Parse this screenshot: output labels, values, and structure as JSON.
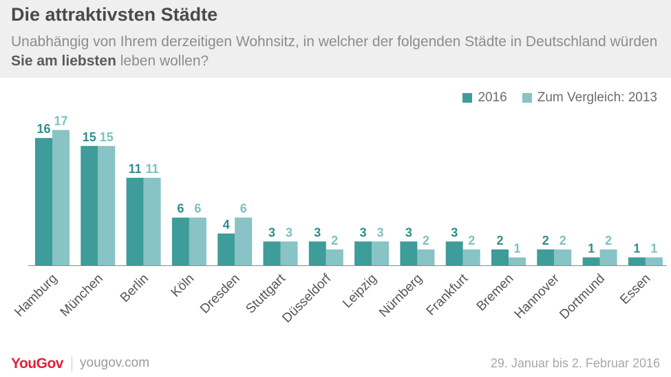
{
  "header": {
    "title": "Die attraktivsten Städte",
    "subtitle_pre": "Unabhängig von Ihrem derzeitigen Wohnsitz, in welcher der folgenden Städte in Deutschland würden ",
    "subtitle_bold": "Sie am liebsten",
    "subtitle_post": " leben wollen?"
  },
  "footer": {
    "logo": "YouGov",
    "url": "yougov.com",
    "date": "29. Januar bis 2. Februar 2016"
  },
  "colors": {
    "series_2016": "#3e9c9a",
    "series_2013": "#88c3c5",
    "label_2016": "#2f8d8b",
    "label_2013": "#7fbfc1",
    "axis": "#8a8a8a",
    "tick_label": "#555555"
  },
  "chart_data": {
    "type": "bar",
    "categories": [
      "Hamburg",
      "München",
      "Berlin",
      "Köln",
      "Dresden",
      "Stuttgart",
      "Düsseldorf",
      "Leipzig",
      "Nürnberg",
      "Frankfurt",
      "Bremen",
      "Hannover",
      "Dortmund",
      "Essen"
    ],
    "series": [
      {
        "name": "2016",
        "values": [
          16,
          15,
          11,
          6,
          4,
          3,
          3,
          3,
          3,
          3,
          2,
          2,
          1,
          1
        ]
      },
      {
        "name": "Zum Vergleich: 2013",
        "values": [
          17,
          15,
          11,
          6,
          6,
          3,
          2,
          3,
          2,
          2,
          1,
          2,
          2,
          1
        ]
      }
    ],
    "title": "Die attraktivsten Städte",
    "xlabel": "",
    "ylabel": "",
    "ylim": [
      0,
      17
    ],
    "grid": false,
    "legend_position": "top-right"
  }
}
